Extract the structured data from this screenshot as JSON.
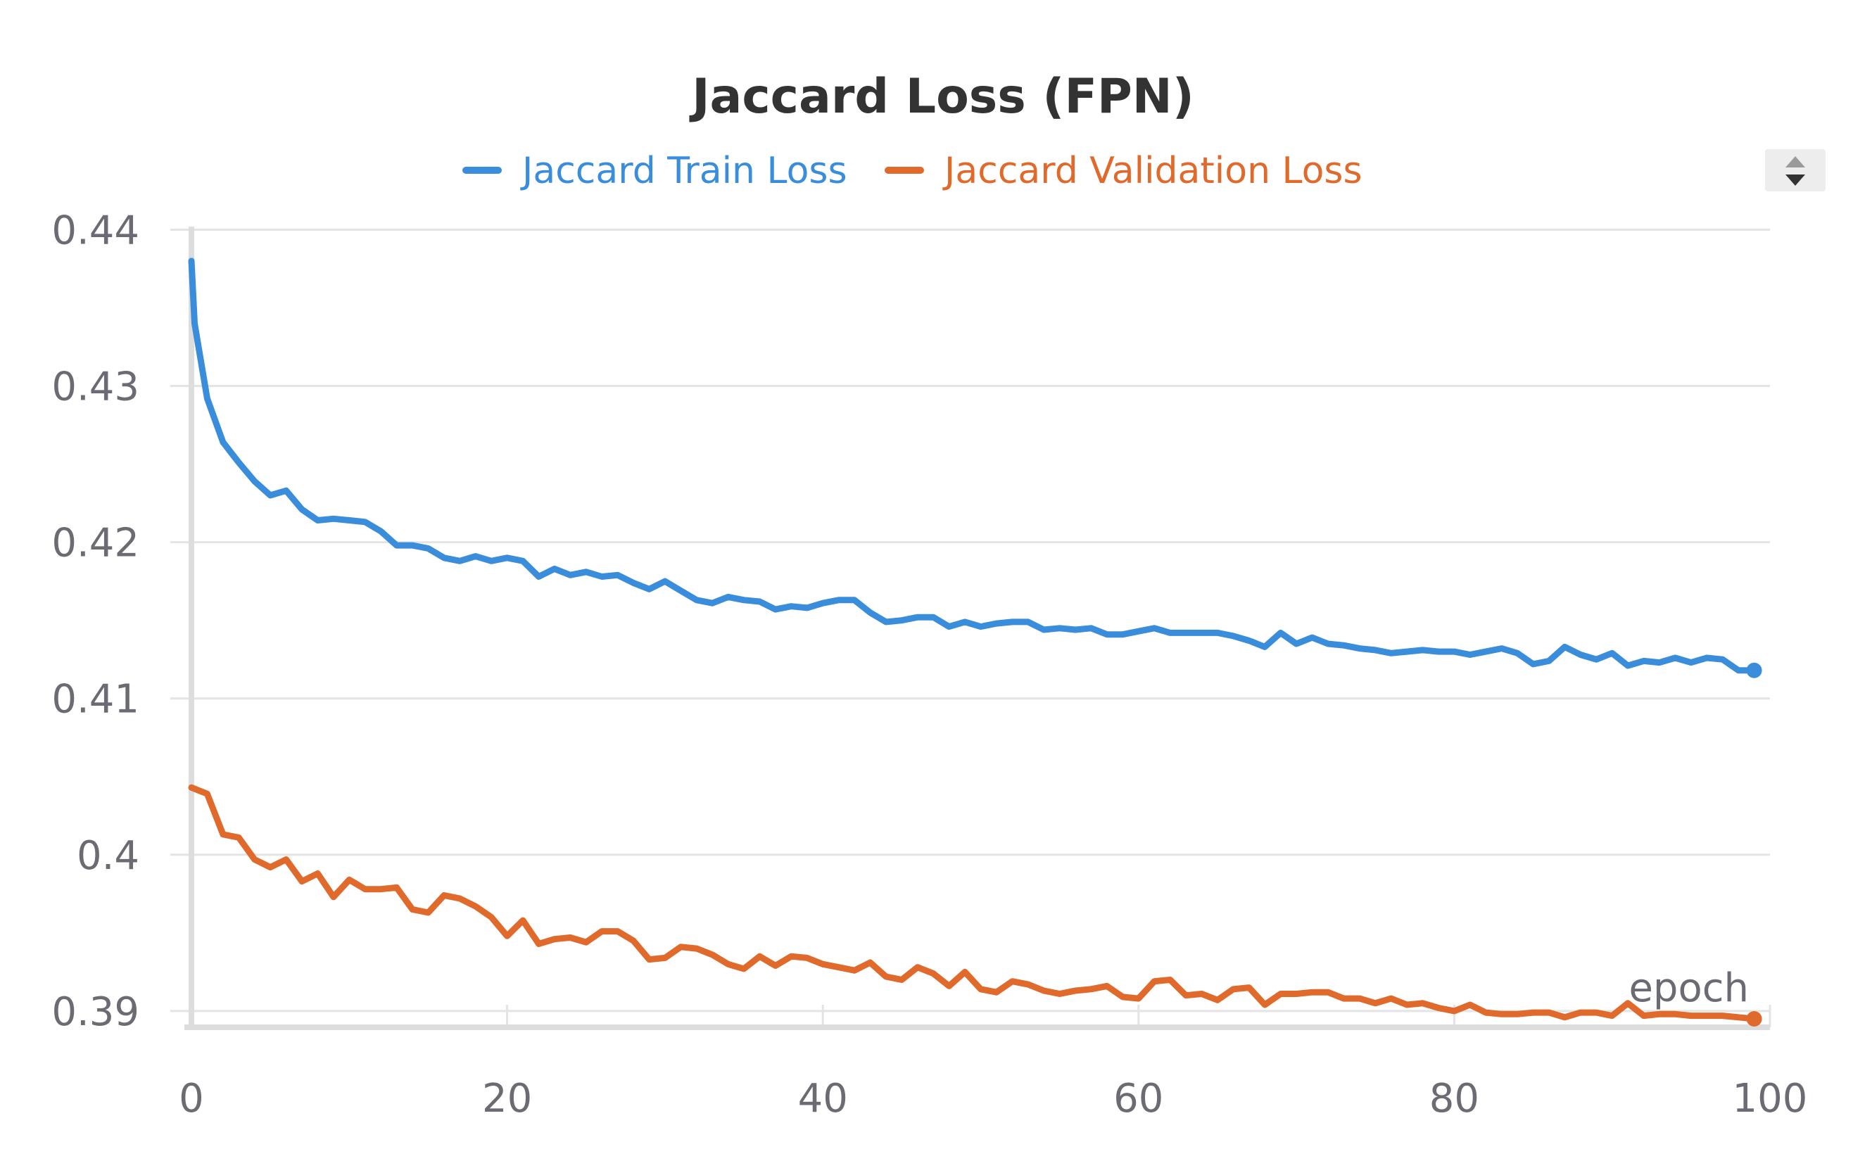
{
  "chart_data": {
    "type": "line",
    "title": "Jaccard Loss (FPN)",
    "xlabel": "epoch",
    "ylabel": "",
    "xlim": [
      0,
      100
    ],
    "ylim": [
      0.3895,
      0.4402
    ],
    "x_ticks": [
      0,
      20,
      40,
      60,
      80,
      100
    ],
    "y_ticks": [
      0.39,
      0.4,
      0.41,
      0.42,
      0.43,
      0.44
    ],
    "x_tick_labels": [
      "0",
      "20",
      "40",
      "60",
      "80",
      "100"
    ],
    "y_tick_labels": [
      "0.39",
      "0.4",
      "0.41",
      "0.42",
      "0.43",
      "0.44"
    ],
    "grid": true,
    "legend_position": "top-center",
    "legend_control_icon": "sort-arrows-icon",
    "series": [
      {
        "name": "Jaccard Train Loss",
        "color": "#3a8ddb",
        "x": [
          0,
          0.2,
          1,
          2,
          3,
          4,
          5,
          6,
          7,
          8,
          9,
          10,
          11,
          12,
          13,
          14,
          15,
          16,
          17,
          18,
          19,
          20,
          21,
          22,
          23,
          24,
          25,
          26,
          27,
          28,
          29,
          30,
          31,
          32,
          33,
          34,
          35,
          36,
          37,
          38,
          39,
          40,
          41,
          42,
          43,
          44,
          45,
          46,
          47,
          48,
          49,
          50,
          51,
          52,
          53,
          54,
          55,
          56,
          57,
          58,
          59,
          60,
          61,
          62,
          63,
          64,
          65,
          66,
          67,
          68,
          69,
          70,
          71,
          72,
          73,
          74,
          75,
          76,
          77,
          78,
          79,
          80,
          81,
          82,
          83,
          84,
          85,
          86,
          87,
          88,
          89,
          90,
          91,
          92,
          93,
          94,
          95,
          96,
          97,
          98,
          99
        ],
        "y": [
          0.438,
          0.434,
          0.4292,
          0.4264,
          0.4251,
          0.4239,
          0.423,
          0.4233,
          0.4221,
          0.4214,
          0.4215,
          0.4214,
          0.4213,
          0.4207,
          0.4198,
          0.4198,
          0.4196,
          0.419,
          0.4188,
          0.4191,
          0.4188,
          0.419,
          0.4188,
          0.4178,
          0.4183,
          0.4179,
          0.4181,
          0.4178,
          0.4179,
          0.4174,
          0.417,
          0.4175,
          0.4169,
          0.4163,
          0.4161,
          0.4165,
          0.4163,
          0.4162,
          0.4157,
          0.4159,
          0.4158,
          0.4161,
          0.4163,
          0.4163,
          0.4155,
          0.4149,
          0.415,
          0.4152,
          0.4152,
          0.4146,
          0.4149,
          0.4146,
          0.4148,
          0.4149,
          0.4149,
          0.4144,
          0.4145,
          0.4144,
          0.4145,
          0.4141,
          0.4141,
          0.4143,
          0.4145,
          0.4142,
          0.4142,
          0.4142,
          0.4142,
          0.414,
          0.4137,
          0.4133,
          0.4142,
          0.4135,
          0.4139,
          0.4135,
          0.4134,
          0.4132,
          0.4131,
          0.4129,
          0.413,
          0.4131,
          0.413,
          0.413,
          0.4128,
          0.413,
          0.4132,
          0.4129,
          0.4122,
          0.4124,
          0.4133,
          0.4128,
          0.4125,
          0.4129,
          0.4121,
          0.4124,
          0.4123,
          0.4126,
          0.4123,
          0.4126,
          0.4125,
          0.4118,
          0.4118
        ]
      },
      {
        "name": "Jaccard Validation Loss",
        "color": "#e06a2b",
        "x": [
          0,
          1,
          2,
          3,
          4,
          5,
          6,
          7,
          8,
          9,
          10,
          11,
          12,
          13,
          14,
          15,
          16,
          17,
          18,
          19,
          20,
          21,
          22,
          23,
          24,
          25,
          26,
          27,
          28,
          29,
          30,
          31,
          32,
          33,
          34,
          35,
          36,
          37,
          38,
          39,
          40,
          41,
          42,
          43,
          44,
          45,
          46,
          47,
          48,
          49,
          50,
          51,
          52,
          53,
          54,
          55,
          56,
          57,
          58,
          59,
          60,
          61,
          62,
          63,
          64,
          65,
          66,
          67,
          68,
          69,
          70,
          71,
          72,
          73,
          74,
          75,
          76,
          77,
          78,
          79,
          80,
          81,
          82,
          83,
          84,
          85,
          86,
          87,
          88,
          89,
          90,
          91,
          92,
          93,
          94,
          95,
          96,
          97,
          98,
          99
        ],
        "y": [
          0.4043,
          0.4039,
          0.4013,
          0.4011,
          0.3997,
          0.3992,
          0.3997,
          0.3983,
          0.3988,
          0.3973,
          0.3984,
          0.3978,
          0.3978,
          0.3979,
          0.3965,
          0.3963,
          0.3974,
          0.3972,
          0.3967,
          0.396,
          0.3948,
          0.3958,
          0.3943,
          0.3946,
          0.3947,
          0.3944,
          0.3951,
          0.3951,
          0.3945,
          0.3933,
          0.3934,
          0.3941,
          0.394,
          0.3936,
          0.393,
          0.3927,
          0.3935,
          0.3929,
          0.3935,
          0.3934,
          0.393,
          0.3928,
          0.3926,
          0.3931,
          0.3922,
          0.392,
          0.3928,
          0.3924,
          0.3916,
          0.3925,
          0.3914,
          0.3912,
          0.3919,
          0.3917,
          0.3913,
          0.3911,
          0.3913,
          0.3914,
          0.3916,
          0.3909,
          0.3908,
          0.3919,
          0.392,
          0.391,
          0.3911,
          0.3907,
          0.3914,
          0.3915,
          0.3904,
          0.3911,
          0.3911,
          0.3912,
          0.3912,
          0.3908,
          0.3908,
          0.3905,
          0.3908,
          0.3904,
          0.3905,
          0.3902,
          0.39,
          0.3904,
          0.3899,
          0.3898,
          0.3898,
          0.3899,
          0.3899,
          0.3896,
          0.3899,
          0.3899,
          0.3897,
          0.3905,
          0.3897,
          0.3898,
          0.3898,
          0.3897,
          0.3897,
          0.3897,
          0.3896,
          0.3895
        ]
      }
    ]
  }
}
